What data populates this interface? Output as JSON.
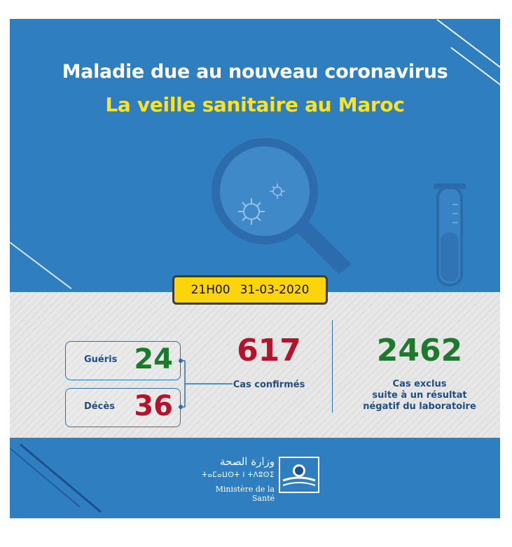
{
  "header": {
    "title": "Maladie due au nouveau coronavirus",
    "subtitle": "La veille sanitaire au Maroc"
  },
  "datetime": {
    "time": "21H00",
    "date": "31-03-2020"
  },
  "stats": {
    "gueris": {
      "label": "Guéris",
      "value": "24"
    },
    "deces": {
      "label": "Décès",
      "value": "36"
    },
    "confirmes": {
      "value": "617",
      "label": "Cas confirmés"
    },
    "exclus": {
      "value": "2462",
      "label_line1": "Cas exclus",
      "label_line2": "suite à un résultat",
      "label_line3": "négatif du laboratoire"
    }
  },
  "footer": {
    "arabic": "وزارة الصحة",
    "tifinagh": "ⵜⴰⵎⴰⵡⵙⵜ ⵏ ⵜⴷⵓⵙⵉ",
    "french": "Ministère de la Santé"
  },
  "colors": {
    "background": "#2f7ec0",
    "title": "#ffffff",
    "subtitle": "#ffe125",
    "date_box": "#fbd40c",
    "green": "#1d7a2c",
    "red": "#b5132b",
    "label": "#1f4e86"
  },
  "icons": [
    "magnifier-icon",
    "virus-icon",
    "test-tube-icon",
    "ministry-logo-icon"
  ]
}
